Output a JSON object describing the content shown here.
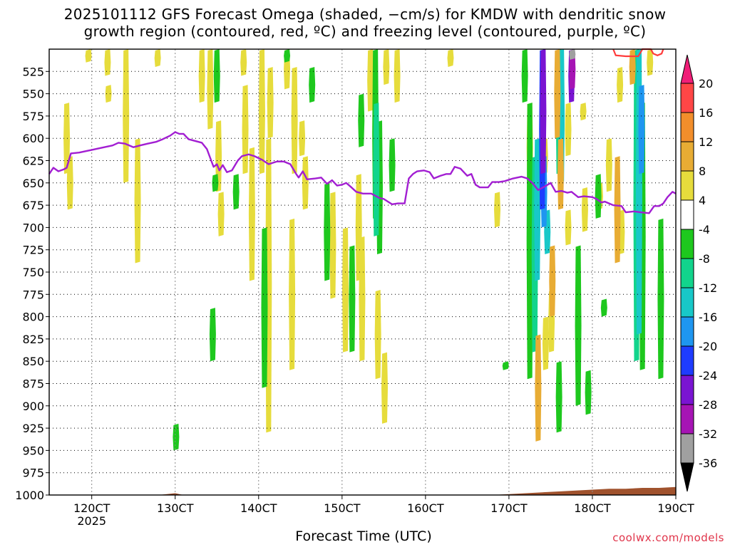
{
  "title_line1": "2025101112 GFS Forecast Omega (shaded, −cm/s) for KMDW with dendritic snow",
  "title_line2": "growth region (contoured, red, ºC) and freezing level (contoured, purple, ºC)",
  "x_axis_label": "Forecast Time (UTC)",
  "credit": "coolwx.com/models",
  "chart_data": {
    "type": "heatmap",
    "x_unit": "forecast hour",
    "x_ticks": [
      {
        "hour": 120,
        "label": "120CT",
        "sublabel": "2025"
      },
      {
        "hour": 130,
        "label": "130CT"
      },
      {
        "hour": 140,
        "label": "140CT"
      },
      {
        "hour": 150,
        "label": "150CT"
      },
      {
        "hour": 160,
        "label": "160CT"
      },
      {
        "hour": 170,
        "label": "170CT"
      },
      {
        "hour": 180,
        "label": "180CT"
      },
      {
        "hour": 190,
        "label": "190CT"
      }
    ],
    "xlim": [
      114.9,
      190
    ],
    "y_ticks": [
      525,
      550,
      575,
      600,
      625,
      650,
      675,
      700,
      725,
      750,
      775,
      800,
      825,
      850,
      875,
      900,
      925,
      950,
      975,
      1000
    ],
    "ylim_hpa": [
      500,
      1000
    ],
    "legend_levels": [
      20,
      16,
      12,
      8,
      4,
      -4,
      -8,
      -12,
      -16,
      -20,
      -24,
      -28,
      -32,
      -36
    ],
    "legend_colors": [
      "#ff3b3b",
      "#ff4646",
      "#f28e2b",
      "#e8ac34",
      "#e6dc3c",
      "#ffffff",
      "#1ec81e",
      "#12d48c",
      "#18c8c8",
      "#1e96f0",
      "#1e3cff",
      "#7a14d2",
      "#a614b4",
      "#a0a0a0"
    ],
    "omega_patches": [
      {
        "color": "#e6dc3c",
        "x": 119.6,
        "top": 500,
        "bottom": 515
      },
      {
        "color": "#e6dc3c",
        "x": 117.0,
        "top": 560,
        "bottom": 640
      },
      {
        "color": "#e6dc3c",
        "x": 117.4,
        "top": 620,
        "bottom": 680
      },
      {
        "color": "#e6dc3c",
        "x": 121.9,
        "top": 500,
        "bottom": 530
      },
      {
        "color": "#e6dc3c",
        "x": 122.0,
        "top": 540,
        "bottom": 560
      },
      {
        "color": "#e6dc3c",
        "x": 124.1,
        "top": 500,
        "bottom": 650
      },
      {
        "color": "#e6dc3c",
        "x": 125.5,
        "top": 600,
        "bottom": 740
      },
      {
        "color": "#e6dc3c",
        "x": 127.9,
        "top": 500,
        "bottom": 520
      },
      {
        "color": "#e6dc3c",
        "x": 133.2,
        "top": 500,
        "bottom": 560
      },
      {
        "color": "#e6dc3c",
        "x": 134.2,
        "top": 500,
        "bottom": 590
      },
      {
        "color": "#e6dc3c",
        "x": 135.5,
        "top": 660,
        "bottom": 710
      },
      {
        "color": "#e6dc3c",
        "x": 135.2,
        "top": 580,
        "bottom": 660
      },
      {
        "color": "#e6dc3c",
        "x": 138.2,
        "top": 500,
        "bottom": 530
      },
      {
        "color": "#e6dc3c",
        "x": 138.4,
        "top": 540,
        "bottom": 640
      },
      {
        "color": "#e6dc3c",
        "x": 139.2,
        "top": 610,
        "bottom": 760
      },
      {
        "color": "#e6dc3c",
        "x": 140.4,
        "top": 500,
        "bottom": 640
      },
      {
        "color": "#e6dc3c",
        "x": 141.4,
        "top": 520,
        "bottom": 600
      },
      {
        "color": "#e6dc3c",
        "x": 141.2,
        "top": 600,
        "bottom": 930
      },
      {
        "color": "#e6dc3c",
        "x": 143.4,
        "top": 500,
        "bottom": 545
      },
      {
        "color": "#e6dc3c",
        "x": 144.3,
        "top": 520,
        "bottom": 640
      },
      {
        "color": "#e6dc3c",
        "x": 144.0,
        "top": 690,
        "bottom": 860
      },
      {
        "color": "#e6dc3c",
        "x": 145.2,
        "top": 580,
        "bottom": 620
      },
      {
        "color": "#e6dc3c",
        "x": 145.6,
        "top": 620,
        "bottom": 680
      },
      {
        "color": "#e6dc3c",
        "x": 148.9,
        "top": 660,
        "bottom": 780
      },
      {
        "color": "#e6dc3c",
        "x": 150.4,
        "top": 700,
        "bottom": 840
      },
      {
        "color": "#e6dc3c",
        "x": 152.0,
        "top": 640,
        "bottom": 760
      },
      {
        "color": "#e6dc3c",
        "x": 152.4,
        "top": 710,
        "bottom": 850
      },
      {
        "color": "#e6dc3c",
        "x": 153.4,
        "top": 500,
        "bottom": 570
      },
      {
        "color": "#e6dc3c",
        "x": 154.3,
        "top": 770,
        "bottom": 870
      },
      {
        "color": "#e6dc3c",
        "x": 155.1,
        "top": 840,
        "bottom": 920
      },
      {
        "color": "#e6dc3c",
        "x": 155.3,
        "top": 500,
        "bottom": 540
      },
      {
        "color": "#e6dc3c",
        "x": 156.6,
        "top": 500,
        "bottom": 560
      },
      {
        "color": "#e6dc3c",
        "x": 163.0,
        "top": 500,
        "bottom": 520
      },
      {
        "color": "#e6dc3c",
        "x": 168.6,
        "top": 660,
        "bottom": 700
      },
      {
        "color": "#e6dc3c",
        "x": 172.5,
        "top": 560,
        "bottom": 660
      },
      {
        "color": "#e6dc3c",
        "x": 174.3,
        "top": 600,
        "bottom": 640
      },
      {
        "color": "#e6dc3c",
        "x": 177.1,
        "top": 560,
        "bottom": 620
      },
      {
        "color": "#e6dc3c",
        "x": 178.9,
        "top": 560,
        "bottom": 580
      },
      {
        "color": "#e6dc3c",
        "x": 183.3,
        "top": 520,
        "bottom": 560
      },
      {
        "color": "#e6dc3c",
        "x": 186.9,
        "top": 500,
        "bottom": 530
      },
      {
        "color": "#e6dc3c",
        "x": 182.0,
        "top": 600,
        "bottom": 660
      },
      {
        "color": "#e6dc3c",
        "x": 180.9,
        "top": 650,
        "bottom": 680
      },
      {
        "color": "#e6dc3c",
        "x": 183.5,
        "top": 680,
        "bottom": 730
      },
      {
        "color": "#e6dc3c",
        "x": 175.1,
        "top": 770,
        "bottom": 840
      },
      {
        "color": "#e6dc3c",
        "x": 174.4,
        "top": 800,
        "bottom": 860
      },
      {
        "color": "#e6dc3c",
        "x": 177.1,
        "top": 680,
        "bottom": 720
      },
      {
        "color": "#e6dc3c",
        "x": 179.1,
        "top": 655,
        "bottom": 705
      },
      {
        "color": "#1ec81e",
        "x": 135.0,
        "top": 500,
        "bottom": 560
      },
      {
        "color": "#1ec81e",
        "x": 137.3,
        "top": 640,
        "bottom": 680
      },
      {
        "color": "#1ec81e",
        "x": 134.8,
        "top": 640,
        "bottom": 660
      },
      {
        "color": "#1ec81e",
        "x": 140.7,
        "top": 700,
        "bottom": 880
      },
      {
        "color": "#1ec81e",
        "x": 143.4,
        "top": 500,
        "bottom": 515
      },
      {
        "color": "#1ec81e",
        "x": 146.4,
        "top": 520,
        "bottom": 560
      },
      {
        "color": "#1ec81e",
        "x": 148.2,
        "top": 650,
        "bottom": 760
      },
      {
        "color": "#1ec81e",
        "x": 151.2,
        "top": 720,
        "bottom": 840
      },
      {
        "color": "#1ec81e",
        "x": 152.3,
        "top": 550,
        "bottom": 610
      },
      {
        "color": "#1ec81e",
        "x": 154.0,
        "top": 500,
        "bottom": 690
      },
      {
        "color": "#1ec81e",
        "x": 154.5,
        "top": 580,
        "bottom": 730
      },
      {
        "color": "#1ec81e",
        "x": 156.0,
        "top": 600,
        "bottom": 660
      },
      {
        "color": "#1ec81e",
        "x": 134.5,
        "top": 790,
        "bottom": 850
      },
      {
        "color": "#1ec81e",
        "x": 130.1,
        "top": 920,
        "bottom": 950
      },
      {
        "color": "#1ec81e",
        "x": 169.6,
        "top": 850,
        "bottom": 860
      },
      {
        "color": "#1ec81e",
        "x": 171.9,
        "top": 500,
        "bottom": 560
      },
      {
        "color": "#1ec81e",
        "x": 172.5,
        "top": 560,
        "bottom": 870
      },
      {
        "color": "#1ec81e",
        "x": 178.3,
        "top": 720,
        "bottom": 900
      },
      {
        "color": "#1ec81e",
        "x": 180.7,
        "top": 640,
        "bottom": 690
      },
      {
        "color": "#1ec81e",
        "x": 176.0,
        "top": 850,
        "bottom": 930
      },
      {
        "color": "#1ec81e",
        "x": 179.5,
        "top": 860,
        "bottom": 910
      },
      {
        "color": "#1ec81e",
        "x": 186.0,
        "top": 560,
        "bottom": 860
      },
      {
        "color": "#1ec81e",
        "x": 188.2,
        "top": 690,
        "bottom": 870
      },
      {
        "color": "#1ec81e",
        "x": 181.4,
        "top": 780,
        "bottom": 800
      },
      {
        "color": "#12d48c",
        "x": 154.1,
        "top": 560,
        "bottom": 710
      },
      {
        "color": "#12d48c",
        "x": 173.1,
        "top": 620,
        "bottom": 840
      },
      {
        "color": "#12d48c",
        "x": 176.0,
        "top": 500,
        "bottom": 640
      },
      {
        "color": "#12d48c",
        "x": 185.3,
        "top": 500,
        "bottom": 850
      },
      {
        "color": "#18c8c8",
        "x": 176.3,
        "top": 500,
        "bottom": 650
      },
      {
        "color": "#18c8c8",
        "x": 185.6,
        "top": 500,
        "bottom": 820
      },
      {
        "color": "#18c8c8",
        "x": 173.4,
        "top": 600,
        "bottom": 760
      },
      {
        "color": "#18c8c8",
        "x": 174.6,
        "top": 680,
        "bottom": 730
      },
      {
        "color": "#1e96f0",
        "x": 185.9,
        "top": 540,
        "bottom": 640
      },
      {
        "color": "#1e96f0",
        "x": 174.2,
        "top": 620,
        "bottom": 700
      },
      {
        "color": "#1e3cff",
        "x": 174.0,
        "top": 500,
        "bottom": 680
      },
      {
        "color": "#7a14d2",
        "x": 174.1,
        "top": 500,
        "bottom": 640
      },
      {
        "color": "#7a14d2",
        "x": 177.5,
        "top": 500,
        "bottom": 560
      },
      {
        "color": "#a614b4",
        "x": 177.6,
        "top": 500,
        "bottom": 545
      },
      {
        "color": "#a0a0a0",
        "x": 177.6,
        "top": 500,
        "bottom": 512
      },
      {
        "color": "#e8ac34",
        "x": 175.8,
        "top": 500,
        "bottom": 600
      },
      {
        "color": "#e8ac34",
        "x": 176.2,
        "top": 600,
        "bottom": 680
      },
      {
        "color": "#e8ac34",
        "x": 175.2,
        "top": 720,
        "bottom": 800
      },
      {
        "color": "#e8ac34",
        "x": 173.5,
        "top": 820,
        "bottom": 940
      },
      {
        "color": "#e8ac34",
        "x": 183.0,
        "top": 620,
        "bottom": 740
      },
      {
        "color": "#e8ac34",
        "x": 184.8,
        "top": 500,
        "bottom": 540
      }
    ],
    "freezing_level_hpa": [
      [
        114.9,
        640
      ],
      [
        115.4,
        633
      ],
      [
        116.0,
        637
      ],
      [
        116.6,
        635
      ],
      [
        117.0,
        633
      ],
      [
        117.5,
        617
      ],
      [
        118.5,
        616
      ],
      [
        119.5,
        614
      ],
      [
        120.5,
        612
      ],
      [
        121.5,
        610
      ],
      [
        122.5,
        608
      ],
      [
        123.2,
        605
      ],
      [
        124.0,
        606
      ],
      [
        125.0,
        610
      ],
      [
        125.8,
        608
      ],
      [
        126.7,
        606
      ],
      [
        127.7,
        604
      ],
      [
        128.5,
        601
      ],
      [
        129.4,
        597
      ],
      [
        130.0,
        593
      ],
      [
        130.5,
        595
      ],
      [
        131.0,
        595
      ],
      [
        131.6,
        601
      ],
      [
        132.4,
        603
      ],
      [
        133.2,
        605
      ],
      [
        133.8,
        612
      ],
      [
        134.2,
        622
      ],
      [
        134.6,
        632
      ],
      [
        135.0,
        629
      ],
      [
        135.3,
        636
      ],
      [
        135.7,
        630
      ],
      [
        136.2,
        638
      ],
      [
        136.8,
        636
      ],
      [
        137.5,
        625
      ],
      [
        138.0,
        620
      ],
      [
        138.8,
        618
      ],
      [
        139.5,
        620
      ],
      [
        140.4,
        624
      ],
      [
        141.2,
        629
      ],
      [
        142.2,
        626
      ],
      [
        143.0,
        626
      ],
      [
        143.8,
        629
      ],
      [
        144.5,
        640
      ],
      [
        144.8,
        644
      ],
      [
        145.3,
        637
      ],
      [
        145.8,
        646
      ],
      [
        146.8,
        645
      ],
      [
        147.5,
        644
      ],
      [
        148.2,
        651
      ],
      [
        148.8,
        647
      ],
      [
        149.4,
        653
      ],
      [
        150.0,
        652
      ],
      [
        150.5,
        650
      ],
      [
        151.0,
        654
      ],
      [
        151.7,
        660
      ],
      [
        152.5,
        662
      ],
      [
        153.5,
        662
      ],
      [
        154.5,
        667
      ],
      [
        155.0,
        668
      ],
      [
        156.0,
        674
      ],
      [
        156.7,
        673
      ],
      [
        157.5,
        673
      ],
      [
        158.0,
        645
      ],
      [
        158.5,
        640
      ],
      [
        159.0,
        637
      ],
      [
        159.8,
        636
      ],
      [
        160.5,
        638
      ],
      [
        161.0,
        645
      ],
      [
        161.8,
        642
      ],
      [
        162.5,
        640
      ],
      [
        163.0,
        640
      ],
      [
        163.5,
        632
      ],
      [
        164.2,
        634
      ],
      [
        165.0,
        642
      ],
      [
        165.5,
        640
      ],
      [
        166.0,
        652
      ],
      [
        166.5,
        655
      ],
      [
        167.5,
        655
      ],
      [
        168.0,
        649
      ],
      [
        168.8,
        649
      ],
      [
        169.5,
        648
      ],
      [
        170.5,
        645
      ],
      [
        171.5,
        643
      ],
      [
        172.2,
        645
      ],
      [
        172.8,
        650
      ],
      [
        173.5,
        658
      ],
      [
        174.3,
        654
      ],
      [
        175.0,
        650
      ],
      [
        175.6,
        660
      ],
      [
        176.3,
        659
      ],
      [
        177.0,
        661
      ],
      [
        177.5,
        660
      ],
      [
        178.3,
        666
      ],
      [
        179.0,
        665
      ],
      [
        180.0,
        666
      ],
      [
        180.5,
        668
      ],
      [
        181.1,
        672
      ],
      [
        181.5,
        671
      ],
      [
        182.5,
        675
      ],
      [
        183.5,
        676
      ],
      [
        184.0,
        683
      ],
      [
        185.0,
        682
      ],
      [
        185.8,
        683
      ],
      [
        186.8,
        684
      ],
      [
        187.4,
        676
      ],
      [
        188.0,
        676
      ],
      [
        188.5,
        673
      ],
      [
        189.0,
        666
      ],
      [
        189.6,
        660
      ],
      [
        190.0,
        662
      ]
    ],
    "dgz_top_hpa": [
      [
        182.5,
        500
      ],
      [
        182.8,
        507
      ],
      [
        184.0,
        508
      ],
      [
        185.5,
        508
      ],
      [
        186.0,
        500
      ],
      [
        187.0,
        500
      ],
      [
        187.3,
        505
      ],
      [
        187.8,
        507
      ],
      [
        188.3,
        505
      ],
      [
        188.5,
        500
      ]
    ],
    "surface_pressure_hpa": [
      [
        114.9,
        1004
      ],
      [
        115.5,
        1005
      ],
      [
        116.0,
        1003
      ],
      [
        117.0,
        1002
      ],
      [
        118.0,
        1001
      ],
      [
        119.0,
        1002
      ],
      [
        120.0,
        1001
      ],
      [
        122.0,
        1001
      ],
      [
        124.0,
        1002
      ],
      [
        126.0,
        1001
      ],
      [
        128.0,
        1000
      ],
      [
        130.0,
        998
      ],
      [
        131.0,
        1000
      ],
      [
        133.0,
        1001
      ],
      [
        135.0,
        1002
      ],
      [
        138.0,
        1002
      ],
      [
        140.0,
        1003
      ],
      [
        145.0,
        1003
      ],
      [
        150.0,
        1003
      ],
      [
        152.0,
        1003
      ],
      [
        154.0,
        1004
      ],
      [
        155.0,
        1005
      ],
      [
        156.0,
        1004
      ],
      [
        158.0,
        1003
      ],
      [
        160.0,
        1003
      ],
      [
        162.0,
        1002
      ],
      [
        164.0,
        1001
      ],
      [
        166.0,
        1000
      ],
      [
        168.0,
        1000
      ],
      [
        170.0,
        999
      ],
      [
        172.0,
        998
      ],
      [
        174.0,
        997
      ],
      [
        176.0,
        996
      ],
      [
        178.0,
        995
      ],
      [
        180.0,
        994
      ],
      [
        182.0,
        993
      ],
      [
        184.0,
        993
      ],
      [
        186.0,
        992
      ],
      [
        188.0,
        992
      ],
      [
        190.0,
        991
      ]
    ]
  }
}
